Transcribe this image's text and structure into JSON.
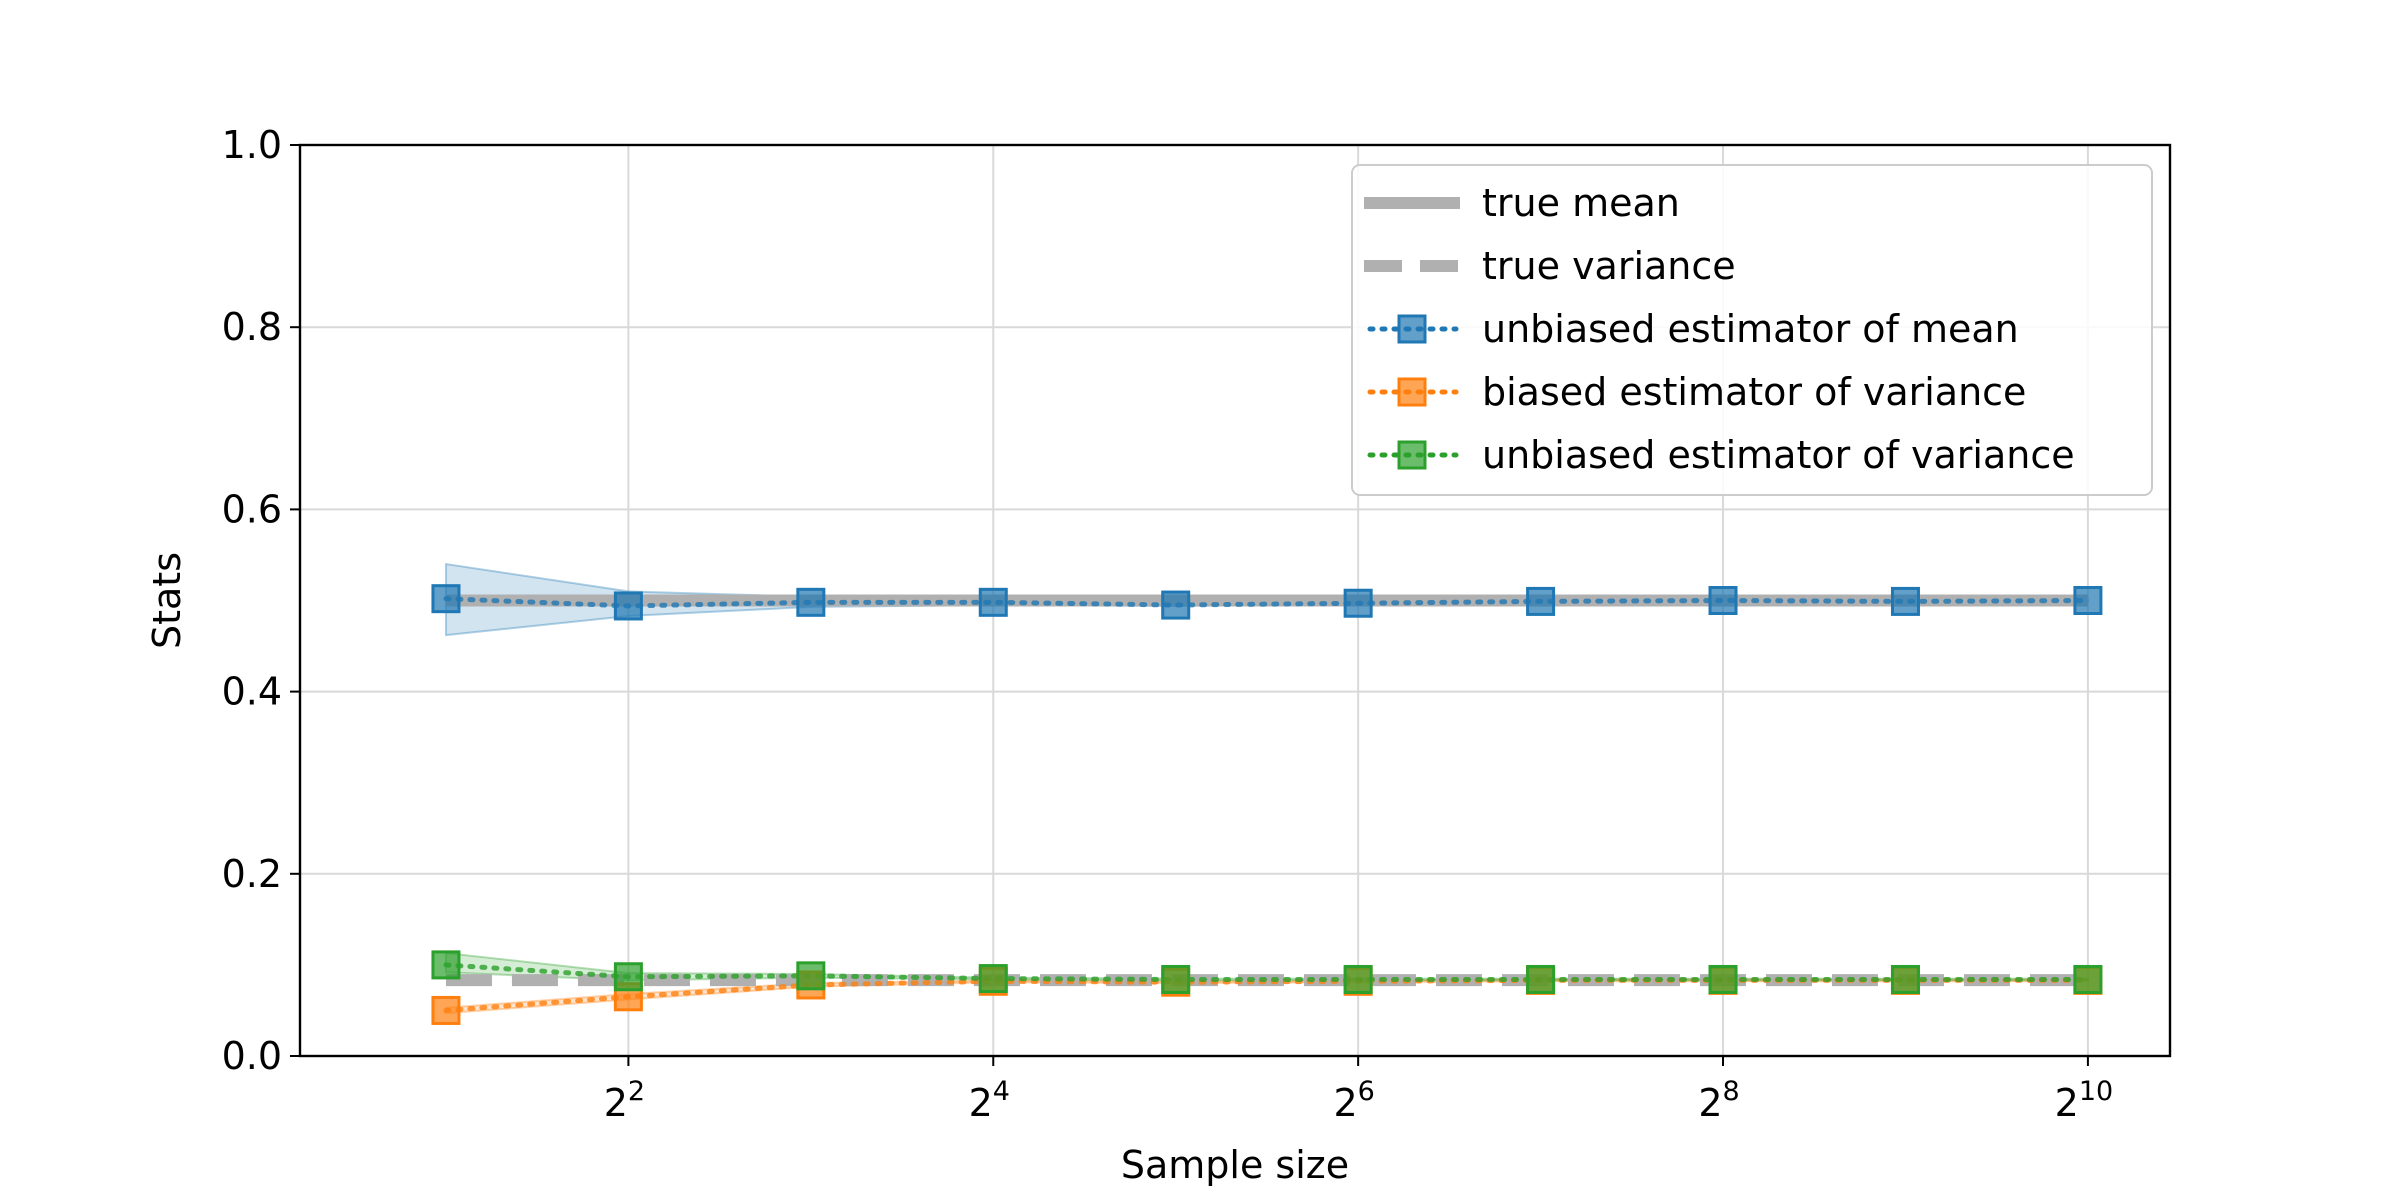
{
  "chart_data": {
    "type": "line",
    "title": "",
    "xlabel": "Sample size",
    "ylabel": "Stats",
    "x_scale": "log2",
    "x": [
      2,
      4,
      8,
      16,
      32,
      64,
      128,
      256,
      512,
      1024
    ],
    "xlim_log2": [
      0.2,
      10.45
    ],
    "ylim": [
      0.0,
      1.0
    ],
    "grid": true,
    "xticks": [
      {
        "base": "2",
        "exp": "2",
        "log2": 2
      },
      {
        "base": "2",
        "exp": "4",
        "log2": 4
      },
      {
        "base": "2",
        "exp": "6",
        "log2": 6
      },
      {
        "base": "2",
        "exp": "8",
        "log2": 8
      },
      {
        "base": "2",
        "exp": "10",
        "log2": 10
      }
    ],
    "yticks": [
      "0.0",
      "0.2",
      "0.4",
      "0.6",
      "0.8",
      "1.0"
    ],
    "legend_position": "top-right",
    "reference_lines": [
      {
        "name": "true mean",
        "value": 0.5,
        "style": "solid",
        "color": "#b0b0b0"
      },
      {
        "name": "true variance",
        "value": 0.0833,
        "style": "dashed",
        "color": "#b0b0b0"
      }
    ],
    "series": [
      {
        "name": "unbiased estimator of mean",
        "color": "#1f77b4",
        "values": [
          0.502,
          0.494,
          0.498,
          0.498,
          0.495,
          0.497,
          0.499,
          0.5,
          0.499,
          0.5
        ],
        "band_low": [
          0.462,
          0.483,
          0.493,
          0.495,
          0.494,
          0.496,
          0.498,
          0.499,
          0.498,
          0.499
        ],
        "band_high": [
          0.54,
          0.51,
          0.504,
          0.502,
          0.499,
          0.5,
          0.501,
          0.501,
          0.501,
          0.501
        ]
      },
      {
        "name": "biased estimator of variance",
        "color": "#ff7f0e",
        "values": [
          0.05,
          0.065,
          0.078,
          0.082,
          0.081,
          0.082,
          0.083,
          0.083,
          0.083,
          0.083
        ],
        "band_low": [
          0.047,
          0.062,
          0.076,
          0.081,
          0.08,
          0.081,
          0.082,
          0.082,
          0.082,
          0.082
        ],
        "band_high": [
          0.053,
          0.068,
          0.08,
          0.083,
          0.082,
          0.083,
          0.084,
          0.084,
          0.084,
          0.084
        ]
      },
      {
        "name": "unbiased estimator of variance",
        "color": "#2ca02c",
        "values": [
          0.1,
          0.087,
          0.088,
          0.085,
          0.084,
          0.084,
          0.084,
          0.084,
          0.084,
          0.084
        ],
        "band_low": [
          0.092,
          0.083,
          0.086,
          0.084,
          0.083,
          0.083,
          0.083,
          0.083,
          0.083,
          0.083
        ],
        "band_high": [
          0.113,
          0.091,
          0.09,
          0.086,
          0.085,
          0.085,
          0.085,
          0.085,
          0.085,
          0.085
        ]
      }
    ]
  }
}
